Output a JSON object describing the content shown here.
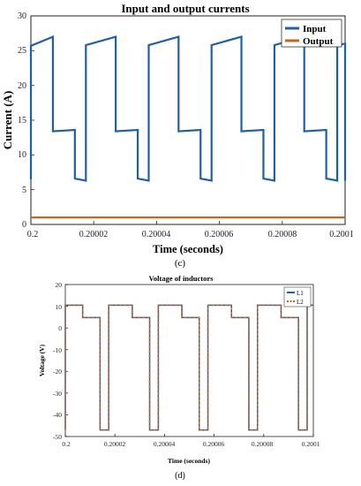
{
  "charts": [
    {
      "type": "line",
      "title": "Input and output currents",
      "xlabel": "Time (seconds)",
      "ylabel": "Current (A)",
      "caption": "(c)",
      "xlim": [
        0.2,
        0.2001
      ],
      "ylim": [
        0,
        30
      ],
      "xticks": [
        0.2,
        0.20002,
        0.20004,
        0.20006,
        0.20008,
        0.2001
      ],
      "xtick_labels": [
        "0.2",
        "0.20002",
        "0.20004",
        "0.20006",
        "0.20008",
        "0.2001"
      ],
      "yticks": [
        0,
        5,
        10,
        15,
        20,
        25,
        30
      ],
      "ytick_labels": [
        "0",
        "5",
        "10",
        "15",
        "20",
        "25",
        "30"
      ],
      "grid": false,
      "legend_position": "top-right",
      "colors": {
        "Input": "#1f5fa8",
        "Output": "#c8641e"
      },
      "series": [
        {
          "name": "Input",
          "x": [
            0.2,
            0.2,
            0.200007,
            0.200007,
            0.200014,
            0.200014,
            0.2000175,
            0.2000175,
            0.200027,
            0.200027,
            0.200034,
            0.200034,
            0.2000375,
            0.2000375,
            0.200047,
            0.200047,
            0.200054,
            0.200054,
            0.2000575,
            0.2000575,
            0.200067,
            0.200067,
            0.200074,
            0.200074,
            0.2000775,
            0.2000775,
            0.200087,
            0.200087,
            0.200094,
            0.200094,
            0.2000975,
            0.2000975,
            0.2001,
            0.2001
          ],
          "y": [
            6.5,
            25.7,
            27.0,
            13.4,
            13.6,
            6.6,
            6.3,
            25.8,
            27.0,
            13.4,
            13.6,
            6.6,
            6.3,
            25.8,
            27.0,
            13.4,
            13.6,
            6.6,
            6.3,
            25.8,
            27.0,
            13.4,
            13.6,
            6.6,
            6.3,
            25.8,
            27.0,
            13.4,
            13.6,
            6.6,
            6.3,
            25.8,
            26.0,
            6.3
          ]
        },
        {
          "name": "Output",
          "x": [
            0.2,
            0.2001
          ],
          "y": [
            1.0,
            1.0
          ]
        }
      ]
    },
    {
      "type": "line",
      "title": "Voltage of inductors",
      "xlabel": "Time (seconds)",
      "ylabel": "Voltage (V)",
      "caption": "(d)",
      "xlim": [
        0.2,
        0.2001
      ],
      "ylim": [
        -50,
        20
      ],
      "xticks": [
        0.2,
        0.20002,
        0.20004,
        0.20006,
        0.20008,
        0.2001
      ],
      "xtick_labels": [
        "0.2",
        "0.20002",
        "0.20004",
        "0.20006",
        "0.20008",
        "0.2001"
      ],
      "yticks": [
        -50,
        -40,
        -30,
        -20,
        -10,
        0,
        10,
        20
      ],
      "ytick_labels": [
        "-50",
        "-40",
        "-30",
        "-20",
        "-10",
        "0",
        "10",
        "20"
      ],
      "grid": false,
      "legend_position": "top-right",
      "colors": {
        "L1": "#1f5fa8",
        "L2": "#c8641e"
      },
      "series": [
        {
          "name": "L1",
          "x": [
            0.2,
            0.2,
            0.200007,
            0.200007,
            0.200014,
            0.200014,
            0.2000175,
            0.2000175,
            0.200027,
            0.200027,
            0.200034,
            0.200034,
            0.2000375,
            0.2000375,
            0.200047,
            0.200047,
            0.200054,
            0.200054,
            0.2000575,
            0.2000575,
            0.200067,
            0.200067,
            0.200074,
            0.200074,
            0.2000775,
            0.2000775,
            0.200087,
            0.200087,
            0.200094,
            0.200094,
            0.2000975,
            0.2000975,
            0.2001
          ],
          "y": [
            -47,
            10.5,
            10.5,
            4.8,
            4.8,
            -47,
            -47,
            10.5,
            10.5,
            4.8,
            4.8,
            -47,
            -47,
            10.5,
            10.5,
            4.8,
            4.8,
            -47,
            -47,
            10.5,
            10.5,
            4.8,
            4.8,
            -47,
            -47,
            10.5,
            10.5,
            4.8,
            4.8,
            -47,
            -47,
            10.5,
            10.5
          ]
        },
        {
          "name": "L2",
          "x": [
            0.2,
            0.2,
            0.200007,
            0.200007,
            0.200014,
            0.200014,
            0.2000175,
            0.2000175,
            0.200027,
            0.200027,
            0.200034,
            0.200034,
            0.2000375,
            0.2000375,
            0.200047,
            0.200047,
            0.200054,
            0.200054,
            0.2000575,
            0.2000575,
            0.200067,
            0.200067,
            0.200074,
            0.200074,
            0.2000775,
            0.2000775,
            0.200087,
            0.200087,
            0.200094,
            0.200094,
            0.2000975,
            0.2000975,
            0.2001
          ],
          "y": [
            -47,
            10.5,
            10.5,
            4.8,
            4.8,
            -47,
            -47,
            10.5,
            10.5,
            4.8,
            4.8,
            -47,
            -47,
            10.5,
            10.5,
            4.8,
            4.8,
            -47,
            -47,
            10.5,
            10.5,
            4.8,
            4.8,
            -47,
            -47,
            10.5,
            10.5,
            4.8,
            4.8,
            -47,
            -47,
            10.5,
            10.5
          ]
        }
      ]
    }
  ]
}
